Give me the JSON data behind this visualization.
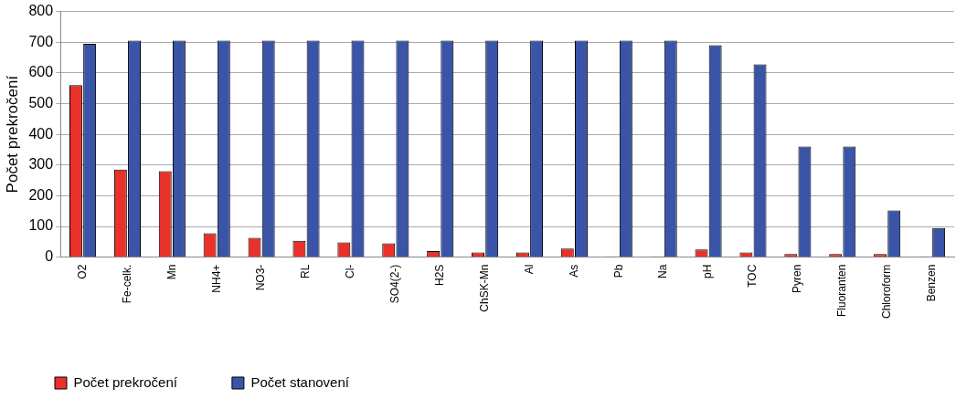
{
  "chart_data": {
    "type": "bar",
    "ylabel": "Počet prekročení",
    "categories": [
      "O2",
      "Fe-celk.",
      "Mn",
      "NH4+",
      "NO3-",
      "RL",
      "Cl-",
      "SO4(2-)",
      "H2S",
      "ChSK-Mn",
      "Al",
      "As",
      "Pb",
      "Na",
      "pH",
      "TOC",
      "Pyren",
      "Fluoranten",
      "Chloroform",
      "Benzen"
    ],
    "series": [
      {
        "name": "Počet prekročení",
        "color": "#e8312a",
        "values": [
          560,
          285,
          280,
          78,
          63,
          53,
          48,
          45,
          20,
          15,
          15,
          28,
          3,
          3,
          25,
          15,
          10,
          10,
          10,
          3
        ]
      },
      {
        "name": "Počet stanovení",
        "color": "#3a54a8",
        "values": [
          695,
          705,
          705,
          705,
          705,
          705,
          705,
          705,
          705,
          705,
          705,
          705,
          705,
          705,
          690,
          628,
          360,
          360,
          152,
          95
        ]
      }
    ],
    "ylim": [
      0,
      800
    ],
    "yticks": [
      0,
      100,
      200,
      300,
      400,
      500,
      600,
      700,
      800
    ],
    "grid": "y",
    "legend": "bottom left"
  }
}
